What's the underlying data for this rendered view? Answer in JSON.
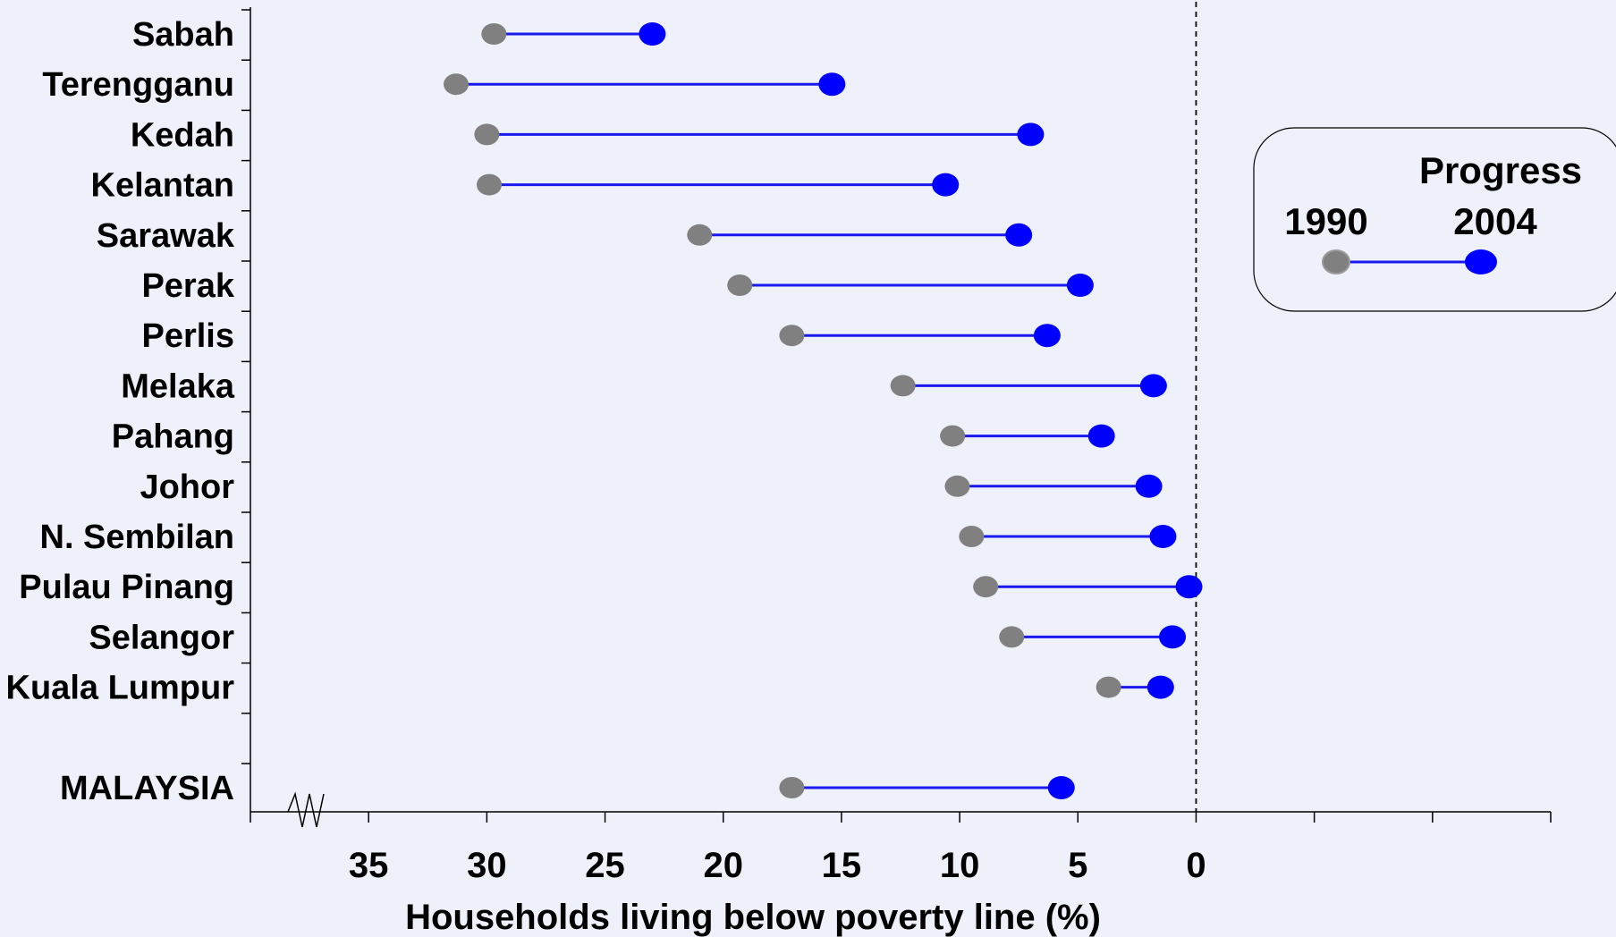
{
  "chart_data": {
    "type": "dumbbell",
    "xlabel": "Households living below poverty line (%)",
    "xlim": [
      40,
      -15
    ],
    "x_reversed": true,
    "x_ticks": [
      35,
      30,
      25,
      20,
      15,
      10,
      5,
      0
    ],
    "x_tick_labels": [
      "35",
      "30",
      "25",
      "20",
      "15",
      "10",
      "5",
      "0"
    ],
    "reference_line_x": 0,
    "axis_break": true,
    "series": [
      {
        "name": "1990",
        "color": "#808080"
      },
      {
        "name": "2004",
        "color": "#0000ff"
      }
    ],
    "connector_color": "#1a1aee",
    "rows": [
      {
        "label": "Sabah",
        "v1990": 29.7,
        "v2004": 23.0
      },
      {
        "label": "Terengganu",
        "v1990": 31.3,
        "v2004": 15.4
      },
      {
        "label": "Kedah",
        "v1990": 30.0,
        "v2004": 7.0
      },
      {
        "label": "Kelantan",
        "v1990": 29.9,
        "v2004": 10.6
      },
      {
        "label": "Sarawak",
        "v1990": 21.0,
        "v2004": 7.5
      },
      {
        "label": "Perak",
        "v1990": 19.3,
        "v2004": 4.9
      },
      {
        "label": "Perlis",
        "v1990": 17.1,
        "v2004": 6.3
      },
      {
        "label": "Melaka",
        "v1990": 12.4,
        "v2004": 1.8
      },
      {
        "label": "Pahang",
        "v1990": 10.3,
        "v2004": 4.0
      },
      {
        "label": "Johor",
        "v1990": 10.1,
        "v2004": 2.0
      },
      {
        "label": "N. Sembilan",
        "v1990": 9.5,
        "v2004": 1.4
      },
      {
        "label": "Pulau Pinang",
        "v1990": 8.9,
        "v2004": 0.3
      },
      {
        "label": "Selangor",
        "v1990": 7.8,
        "v2004": 1.0
      },
      {
        "label": "Kuala Lumpur",
        "v1990": 3.7,
        "v2004": 1.5
      },
      {
        "label": "",
        "v1990": null,
        "v2004": null
      },
      {
        "label": "MALAYSIA",
        "v1990": 17.1,
        "v2004": 5.7
      }
    ],
    "legend": {
      "title": "Progress",
      "label_1990": "1990",
      "label_2004": "2004",
      "position": "right"
    }
  }
}
